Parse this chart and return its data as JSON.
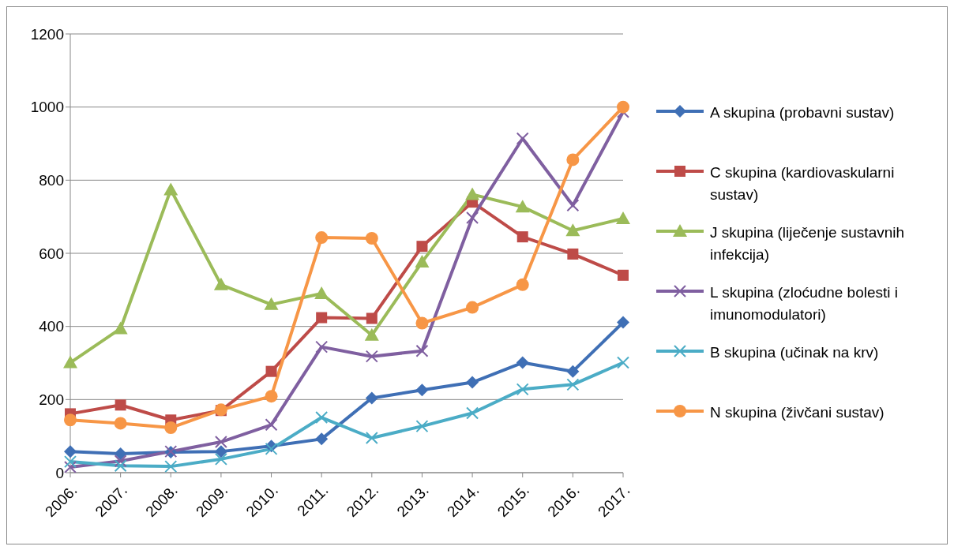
{
  "chart_data": {
    "type": "line",
    "categories": [
      "2006.",
      "2007.",
      "2008.",
      "2009.",
      "2010.",
      "2011.",
      "2012.",
      "2013.",
      "2014.",
      "2015.",
      "2016.",
      "2017."
    ],
    "ylim": [
      0,
      1200
    ],
    "yticks": [
      0,
      200,
      400,
      600,
      800,
      1000,
      1200
    ],
    "grid": "y",
    "legend": "right",
    "series": [
      {
        "name": "A skupina (probavni sustav)",
        "color": "#3f6fb5",
        "marker": "diamond",
        "values": [
          58,
          52,
          56,
          58,
          73,
          92,
          204,
          226,
          247,
          301,
          277,
          411
        ]
      },
      {
        "name": "C skupina (kardiovaskularni sustav)",
        "color": "#be4b48",
        "marker": "square",
        "values": [
          161,
          185,
          144,
          170,
          277,
          424,
          422,
          619,
          740,
          645,
          598,
          540
        ]
      },
      {
        "name": "J skupina (liječenje sustavnih infekcija)",
        "color": "#9bbb59",
        "marker": "triangle",
        "values": [
          301,
          394,
          774,
          514,
          460,
          490,
          376,
          576,
          761,
          727,
          662,
          695
        ]
      },
      {
        "name": "L skupina (zloćudne bolesti i imunomodulatori)",
        "color": "#7f5fa0",
        "marker": "cross",
        "values": [
          15,
          32,
          58,
          84,
          131,
          344,
          318,
          333,
          697,
          914,
          731,
          987
        ]
      },
      {
        "name": "B skupina (učinak na krv)",
        "color": "#4bacc6",
        "marker": "cross",
        "values": [
          30,
          19,
          17,
          37,
          65,
          151,
          95,
          127,
          163,
          228,
          241,
          301
        ]
      },
      {
        "name": "N skupina (živčani sustav)",
        "color": "#f79646",
        "marker": "circle",
        "values": [
          144,
          135,
          123,
          172,
          209,
          643,
          641,
          409,
          452,
          514,
          856,
          1000
        ]
      }
    ]
  }
}
